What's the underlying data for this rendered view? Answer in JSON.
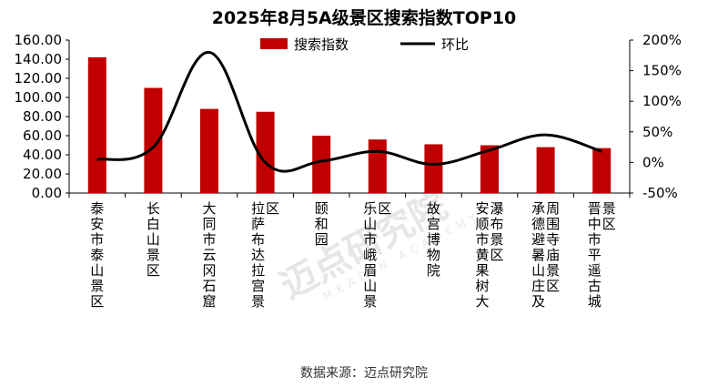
{
  "chart_data": {
    "type": "bar",
    "title": "2025年8月5A级景区搜索指数TOP10",
    "categories": [
      "泰安市泰山景区",
      "长白山景区",
      "大同市云冈石窟",
      "拉萨布达拉宫景区",
      "颐和园",
      "乐山市峨眉山景区",
      "故宫博物院",
      "安顺市黄果树大瀑布景区",
      "承德避暑山庄及周围寺庙景区",
      "晋中市平遥古城景区"
    ],
    "series": [
      {
        "name": "搜索指数",
        "type": "bar",
        "axis": "left",
        "color": "#c00000",
        "values": [
          142,
          110,
          88,
          85,
          60,
          56,
          51,
          50,
          48,
          47
        ]
      },
      {
        "name": "环比",
        "type": "line",
        "axis": "right",
        "color": "#000000",
        "values": [
          0.05,
          0.25,
          1.8,
          0.0,
          0.02,
          0.18,
          -0.03,
          0.2,
          0.45,
          0.18
        ]
      }
    ],
    "left_axis": {
      "min": 0,
      "max": 160,
      "step": 20,
      "tick_labels": [
        "0.00",
        "20.00",
        "40.00",
        "60.00",
        "80.00",
        "100.00",
        "120.00",
        "140.00",
        "160.00"
      ]
    },
    "right_axis": {
      "min": -0.5,
      "max": 2.0,
      "step": 0.5,
      "tick_labels": [
        "-50%",
        "0%",
        "50%",
        "100%",
        "150%",
        "200%"
      ]
    },
    "legend_position": "top-center",
    "grid": false
  },
  "source": "数据来源：迈点研究院",
  "watermark": {
    "text": "迈点研究院",
    "subtext": "MEADIN ACADEMY"
  }
}
